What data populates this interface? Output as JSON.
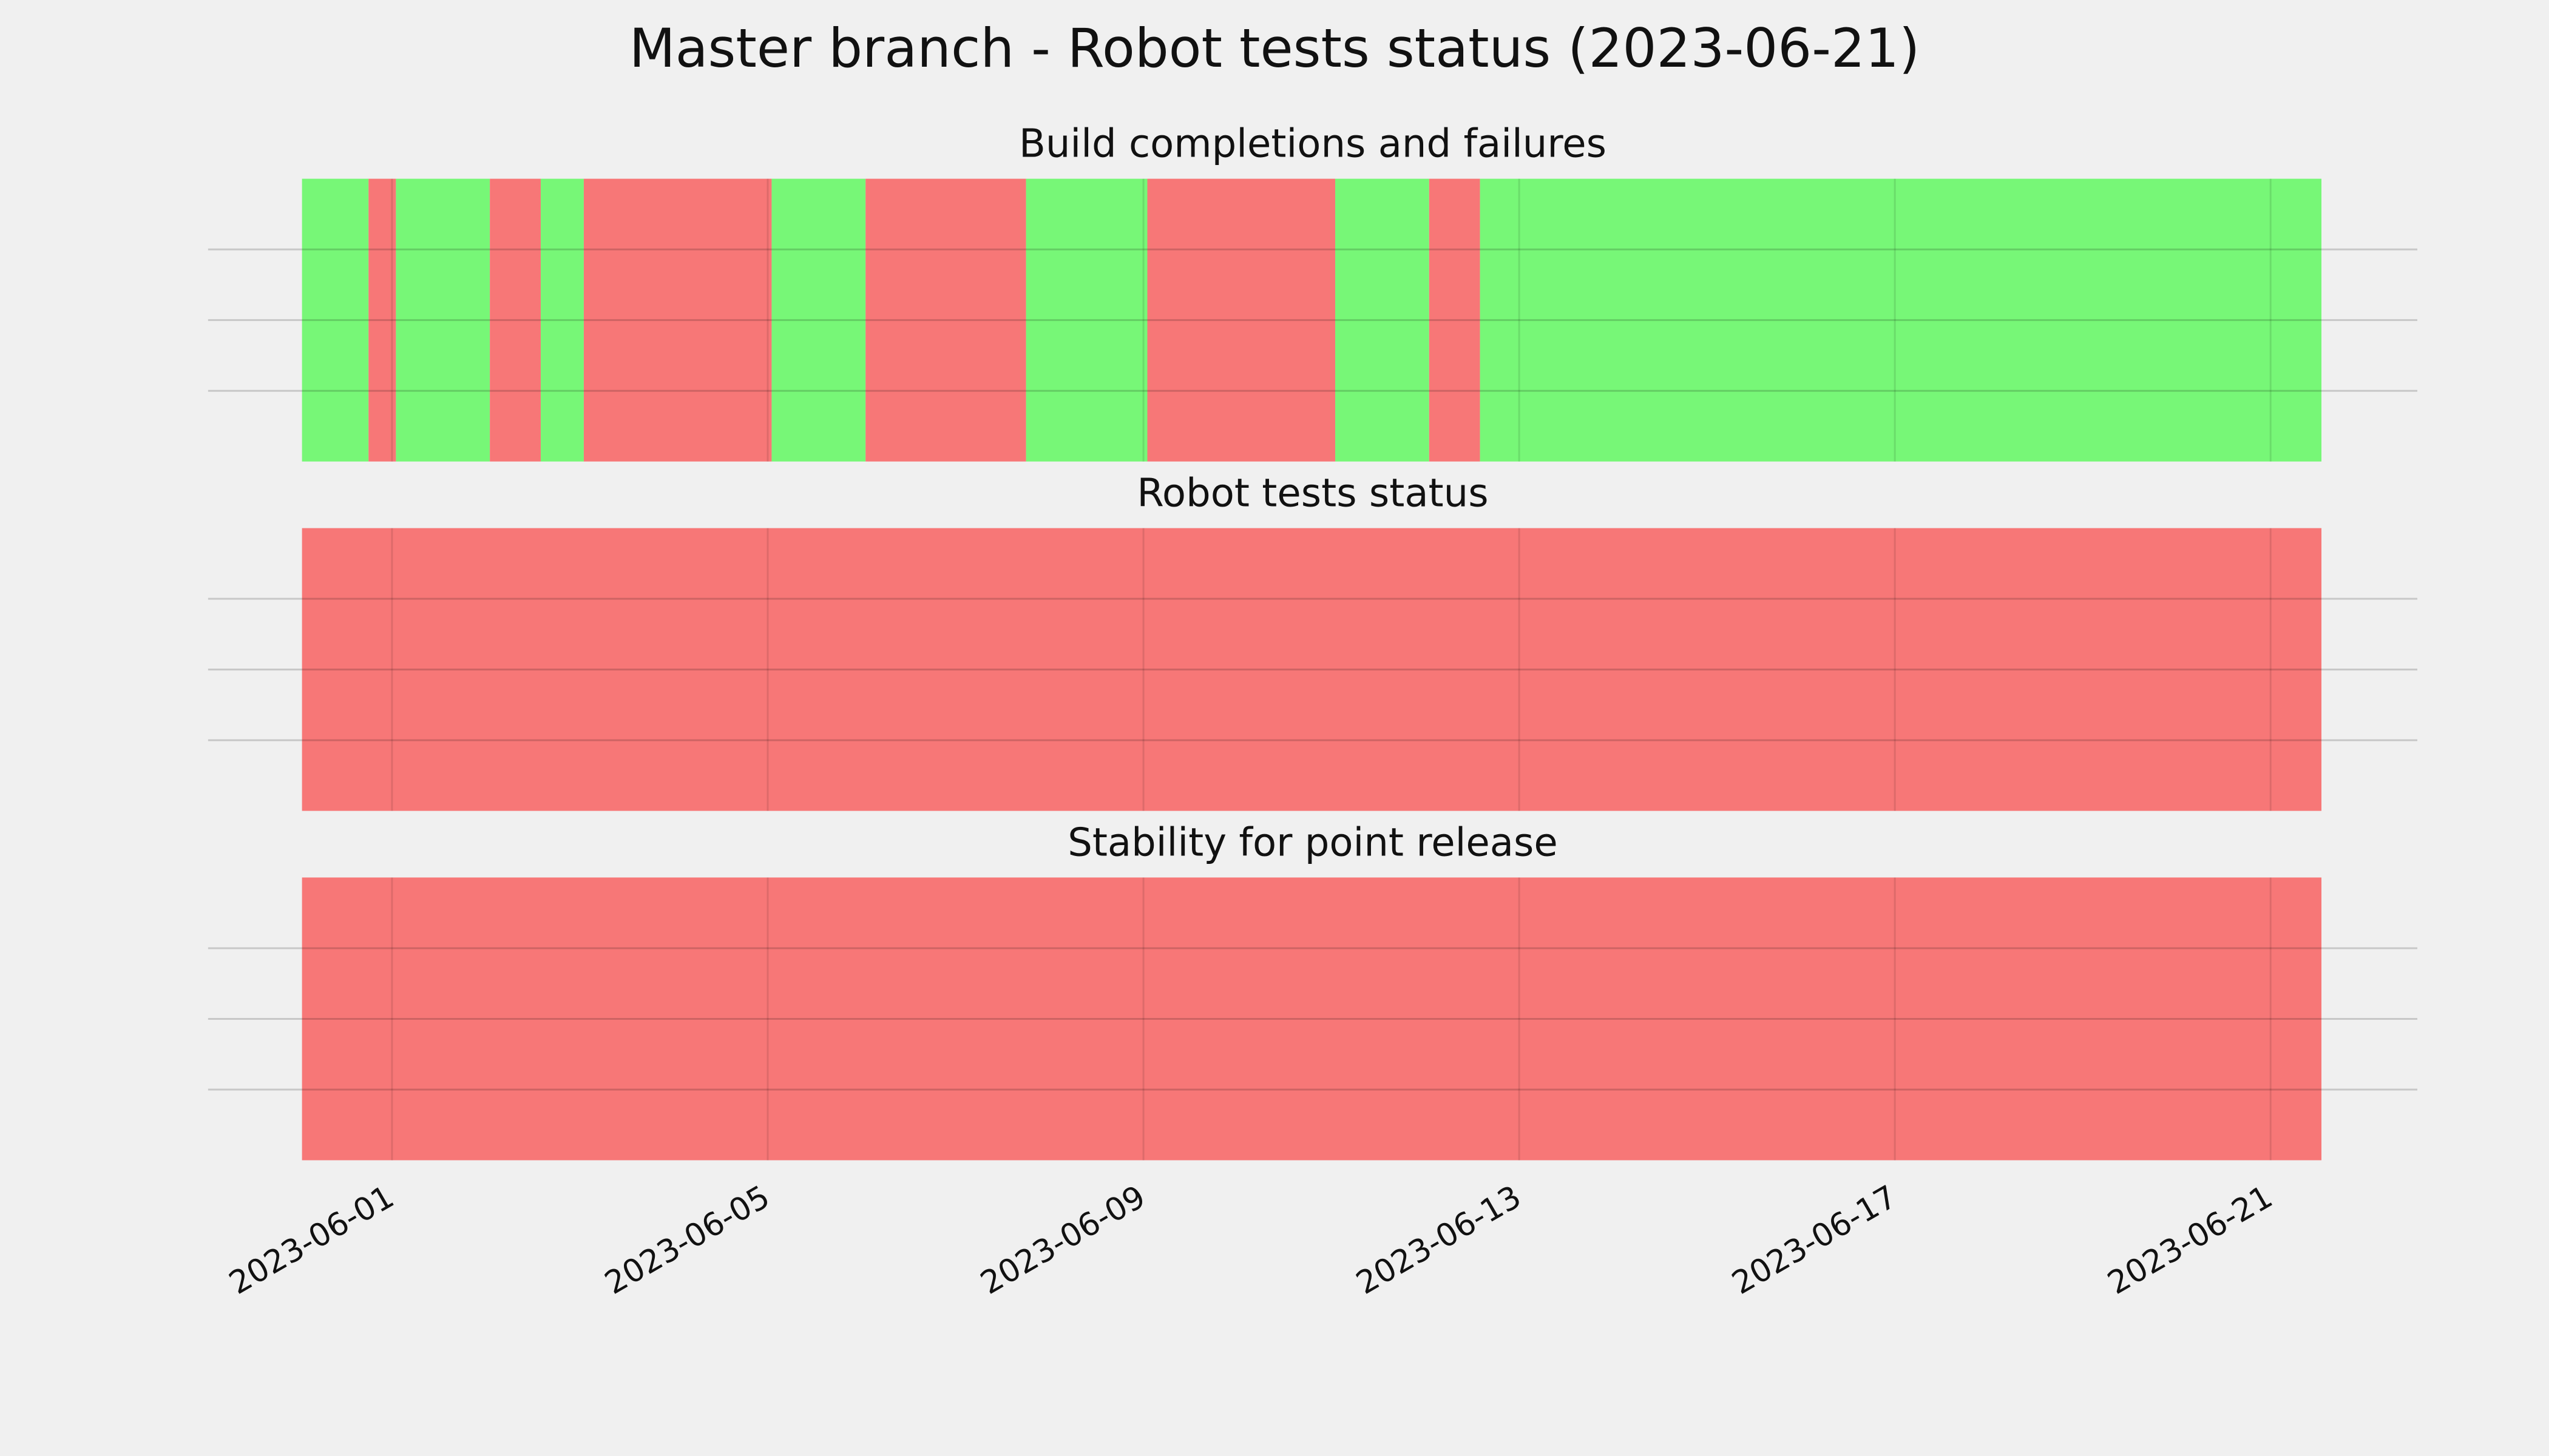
{
  "title": "Master branch - Robot tests status (2023-06-21)",
  "chart_data": [
    {
      "type": "span",
      "title": "Build completions and failures",
      "xlim": [
        "2023-05-30T01:00",
        "2023-06-22T13:30"
      ],
      "ylim": [
        0,
        1
      ],
      "yticks": [
        0.25,
        0.5,
        0.75
      ],
      "grid": true,
      "xticks": [
        "2023-06-01",
        "2023-06-05",
        "2023-06-09",
        "2023-06-13",
        "2023-06-17",
        "2023-06-21"
      ],
      "show_xtick_labels": false,
      "spans": [
        {
          "start": "2023-05-31T01:00",
          "end": "2023-05-31T18:00",
          "color": "#77f777"
        },
        {
          "start": "2023-05-31T18:00",
          "end": "2023-06-01T01:00",
          "color": "#f77777"
        },
        {
          "start": "2023-06-01T01:00",
          "end": "2023-06-02T01:00",
          "color": "#77f777"
        },
        {
          "start": "2023-06-02T01:00",
          "end": "2023-06-02T14:00",
          "color": "#f77777"
        },
        {
          "start": "2023-06-02T14:00",
          "end": "2023-06-03T01:00",
          "color": "#77f777"
        },
        {
          "start": "2023-06-03T01:00",
          "end": "2023-06-05T01:00",
          "color": "#f77777"
        },
        {
          "start": "2023-06-05T01:00",
          "end": "2023-06-06T01:00",
          "color": "#77f777"
        },
        {
          "start": "2023-06-06T01:00",
          "end": "2023-06-07T18:00",
          "color": "#f77777"
        },
        {
          "start": "2023-06-07T18:00",
          "end": "2023-06-09T01:00",
          "color": "#77f777"
        },
        {
          "start": "2023-06-09T01:00",
          "end": "2023-06-11T01:00",
          "color": "#f77777"
        },
        {
          "start": "2023-06-11T01:00",
          "end": "2023-06-12T01:00",
          "color": "#77f777"
        },
        {
          "start": "2023-06-12T01:00",
          "end": "2023-06-12T14:00",
          "color": "#f77777"
        },
        {
          "start": "2023-06-12T14:00",
          "end": "2023-06-21T13:00",
          "color": "#77f777"
        }
      ]
    },
    {
      "type": "span",
      "title": "Robot tests status",
      "xlim": [
        "2023-05-30T01:00",
        "2023-06-22T13:30"
      ],
      "ylim": [
        0,
        1
      ],
      "yticks": [
        0.25,
        0.5,
        0.75
      ],
      "grid": true,
      "xticks": [
        "2023-06-01",
        "2023-06-05",
        "2023-06-09",
        "2023-06-13",
        "2023-06-17",
        "2023-06-21"
      ],
      "show_xtick_labels": false,
      "spans": [
        {
          "start": "2023-05-31T01:00",
          "end": "2023-06-21T13:00",
          "color": "#f77777"
        }
      ]
    },
    {
      "type": "span",
      "title": "Stability for point release",
      "xlim": [
        "2023-05-30T01:00",
        "2023-06-22T13:30"
      ],
      "ylim": [
        0,
        1
      ],
      "yticks": [
        0.25,
        0.5,
        0.75
      ],
      "grid": true,
      "xticks": [
        "2023-06-01",
        "2023-06-05",
        "2023-06-09",
        "2023-06-13",
        "2023-06-17",
        "2023-06-21"
      ],
      "show_xtick_labels": true,
      "spans": [
        {
          "start": "2023-05-31T01:00",
          "end": "2023-06-21T13:00",
          "color": "#f77777"
        }
      ]
    }
  ]
}
